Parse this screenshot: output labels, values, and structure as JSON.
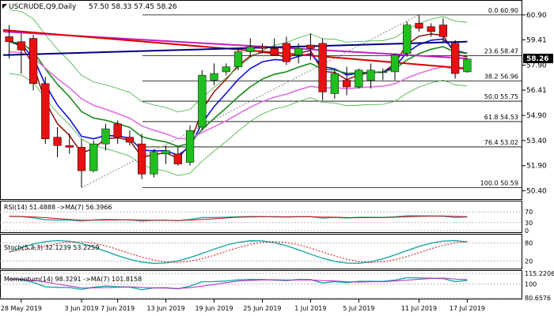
{
  "header": {
    "symbol": "USCRUDE,Q9,Daily",
    "ohlc": "57.50 58.33 57.45 58.26"
  },
  "price_axis": {
    "ticks": [
      "60.90",
      "59.41",
      "57.90",
      "56.41",
      "54.90",
      "53.40",
      "51.90",
      "50.40"
    ],
    "current_price": "58.26",
    "current_price_bg": "#000000"
  },
  "fib_levels": [
    {
      "label": "0.0 60.90",
      "value": 60.9
    },
    {
      "label": "23.6 58.47",
      "value": 58.47
    },
    {
      "label": "38.2 56.96",
      "value": 56.96
    },
    {
      "label": "50.0 55.75",
      "value": 55.75
    },
    {
      "label": "61.8 54.53",
      "value": 54.53
    },
    {
      "label": "76.4 53.02",
      "value": 53.02
    },
    {
      "label": "100.0 50.59",
      "value": 50.59
    }
  ],
  "indicators": {
    "rsi": {
      "label": "RSI(14) 51.4888 ->MA(7) 56.3966",
      "ticks": [
        "70",
        "30",
        "0"
      ]
    },
    "stoch": {
      "label": "Stoch(5,3,3) 32.1239 53.2259",
      "ticks": [
        "80",
        "20"
      ]
    },
    "momentum": {
      "label": "Momentum(14) 98.3291 ->MA(7) 101.8158",
      "ticks": [
        "115.2206",
        "100",
        "80.6576"
      ]
    }
  },
  "x_axis": {
    "ticks": [
      "28 May 2019",
      "3 Jun 2019",
      "7 Jun 2019",
      "13 Jun 2019",
      "19 Jun 2019",
      "25 Jun 2019",
      "1 Jul 2019",
      "5 Jul 2019",
      "11 Jul 2019",
      "17 Jul 2019"
    ]
  },
  "colors": {
    "bull": "#1fbf1f",
    "bear": "#e81010",
    "magenta_line": "#c020c0",
    "red_line": "#e00000",
    "navy_line": "#000080",
    "blue_line": "#1010e0",
    "darkred_line": "#8b0000",
    "green_line": "#1a8a1a",
    "pink_line": "#e070e0",
    "bollinger": "#40b040"
  },
  "chart_data": {
    "type": "candlestick",
    "title": "USCRUDE,Q9,Daily",
    "ylim": [
      50.0,
      61.6
    ],
    "candles": [
      {
        "date": "2019-05-27",
        "open": 59.6,
        "high": 60.3,
        "low": 58.3,
        "close": 59.3
      },
      {
        "date": "2019-05-28",
        "open": 59.3,
        "high": 59.8,
        "low": 57.4,
        "close": 58.8
      },
      {
        "date": "2019-05-29",
        "open": 59.5,
        "high": 59.7,
        "low": 56.4,
        "close": 56.8
      },
      {
        "date": "2019-05-30",
        "open": 56.8,
        "high": 57.2,
        "low": 53.2,
        "close": 53.5
      },
      {
        "date": "2019-05-31",
        "open": 53.6,
        "high": 54.2,
        "low": 52.4,
        "close": 53.1
      },
      {
        "date": "2019-06-03",
        "open": 53.1,
        "high": 53.8,
        "low": 52.6,
        "close": 53.0
      },
      {
        "date": "2019-06-04",
        "open": 53.0,
        "high": 53.5,
        "low": 50.6,
        "close": 51.6
      },
      {
        "date": "2019-06-05",
        "open": 51.6,
        "high": 53.4,
        "low": 51.5,
        "close": 53.2
      },
      {
        "date": "2019-06-06",
        "open": 53.2,
        "high": 54.4,
        "low": 52.8,
        "close": 54.1
      },
      {
        "date": "2019-06-07",
        "open": 54.4,
        "high": 54.6,
        "low": 53.2,
        "close": 53.6
      },
      {
        "date": "2019-06-10",
        "open": 53.6,
        "high": 54.0,
        "low": 53.1,
        "close": 53.3
      },
      {
        "date": "2019-06-11",
        "open": 53.2,
        "high": 53.8,
        "low": 51.1,
        "close": 51.4
      },
      {
        "date": "2019-06-12",
        "open": 51.4,
        "high": 52.9,
        "low": 51.2,
        "close": 52.7
      },
      {
        "date": "2019-06-13",
        "open": 52.6,
        "high": 53.1,
        "low": 52.0,
        "close": 52.8
      },
      {
        "date": "2019-06-14",
        "open": 52.6,
        "high": 53.0,
        "low": 51.9,
        "close": 52.0
      },
      {
        "date": "2019-06-17",
        "open": 52.1,
        "high": 54.3,
        "low": 51.9,
        "close": 54.0
      },
      {
        "date": "2019-06-18",
        "open": 54.2,
        "high": 57.6,
        "low": 54.0,
        "close": 57.3
      },
      {
        "date": "2019-06-19",
        "open": 57.0,
        "high": 58.0,
        "low": 56.7,
        "close": 57.4
      },
      {
        "date": "2019-06-20",
        "open": 57.5,
        "high": 58.0,
        "low": 57.3,
        "close": 57.8
      },
      {
        "date": "2019-06-21",
        "open": 57.8,
        "high": 58.9,
        "low": 57.6,
        "close": 58.7
      },
      {
        "date": "2019-06-24",
        "open": 58.7,
        "high": 59.5,
        "low": 58.4,
        "close": 59.0
      },
      {
        "date": "2019-06-25",
        "open": 59.0,
        "high": 59.2,
        "low": 58.6,
        "close": 58.9
      },
      {
        "date": "2019-06-26",
        "open": 58.9,
        "high": 59.5,
        "low": 58.5,
        "close": 58.5
      },
      {
        "date": "2019-06-27",
        "open": 59.2,
        "high": 59.6,
        "low": 57.9,
        "close": 58.1
      },
      {
        "date": "2019-06-28",
        "open": 58.5,
        "high": 59.2,
        "low": 58.0,
        "close": 58.9
      },
      {
        "date": "2019-07-01",
        "open": 59.1,
        "high": 59.8,
        "low": 58.2,
        "close": 58.9
      },
      {
        "date": "2019-07-02",
        "open": 59.2,
        "high": 59.5,
        "low": 55.8,
        "close": 56.3
      },
      {
        "date": "2019-07-03",
        "open": 56.2,
        "high": 57.6,
        "low": 55.9,
        "close": 57.4
      },
      {
        "date": "2019-07-04",
        "open": 57.0,
        "high": 57.8,
        "low": 56.1,
        "close": 56.6
      },
      {
        "date": "2019-07-05",
        "open": 56.6,
        "high": 57.7,
        "low": 56.5,
        "close": 57.6
      },
      {
        "date": "2019-07-08",
        "open": 57.0,
        "high": 58.0,
        "low": 56.5,
        "close": 57.6
      },
      {
        "date": "2019-07-09",
        "open": 57.5,
        "high": 57.7,
        "low": 57.0,
        "close": 57.5
      },
      {
        "date": "2019-07-10",
        "open": 57.5,
        "high": 58.6,
        "low": 57.0,
        "close": 58.5
      },
      {
        "date": "2019-07-11",
        "open": 58.6,
        "high": 60.5,
        "low": 58.4,
        "close": 60.3
      },
      {
        "date": "2019-07-12",
        "open": 60.4,
        "high": 60.9,
        "low": 59.9,
        "close": 60.1
      },
      {
        "date": "2019-07-15",
        "open": 60.2,
        "high": 60.4,
        "low": 59.6,
        "close": 59.9
      },
      {
        "date": "2019-07-16",
        "open": 60.3,
        "high": 60.7,
        "low": 59.3,
        "close": 59.6
      },
      {
        "date": "2019-07-17",
        "open": 59.2,
        "high": 59.4,
        "low": 57.1,
        "close": 57.4
      },
      {
        "date": "2019-07-18",
        "open": 57.5,
        "high": 58.3,
        "low": 57.45,
        "close": 58.26
      }
    ],
    "overlays": [
      {
        "name": "magenta",
        "from": 59.9,
        "to": 58.3
      },
      {
        "name": "red",
        "from": 60.0,
        "to": 57.7
      },
      {
        "name": "navy",
        "from": 58.5,
        "to": 59.3
      }
    ]
  }
}
